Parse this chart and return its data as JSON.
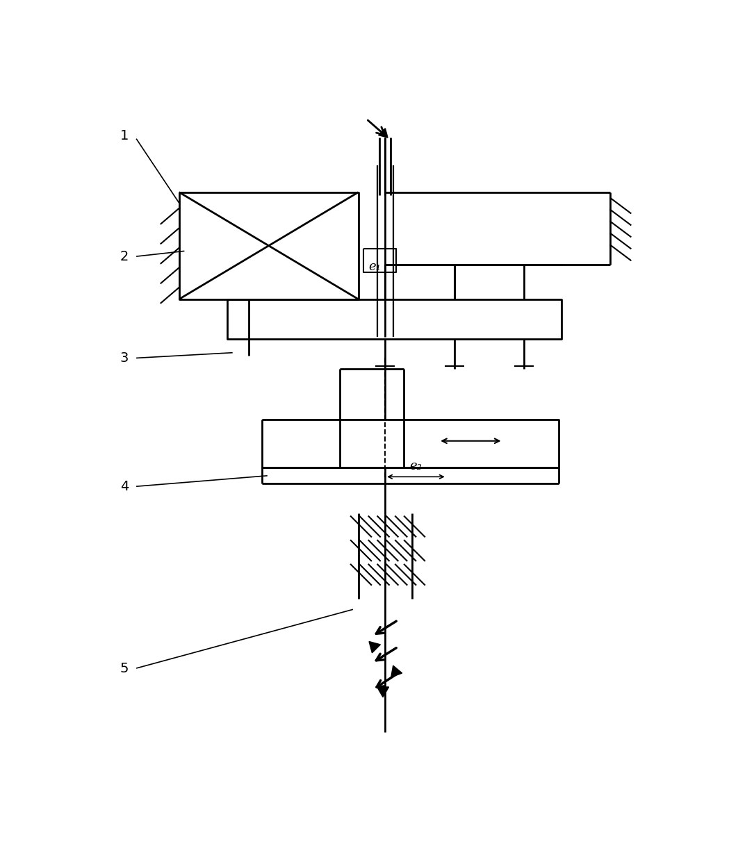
{
  "bg_color": "#ffffff",
  "lc": "#000000",
  "lw": 2.0,
  "label_1": "1",
  "label_2": "2",
  "label_3": "3",
  "label_4": "4",
  "label_5": "5",
  "e1_label": "e₁",
  "e2_label": "e₂",
  "fig_w": 10.85,
  "fig_h": 12.15
}
